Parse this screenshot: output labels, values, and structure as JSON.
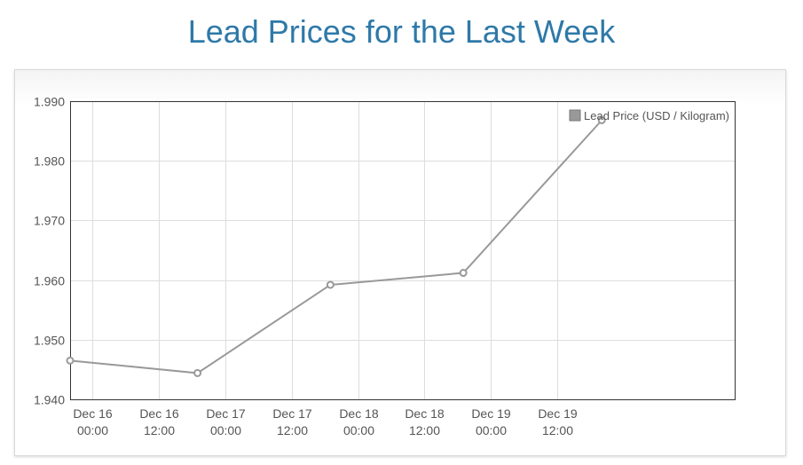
{
  "title": "Lead Prices for the Last Week",
  "chart_data": {
    "type": "line",
    "title": "Lead Prices for the Last Week",
    "xlabel": "",
    "ylabel": "",
    "ylim": [
      1.94,
      1.99
    ],
    "y_ticks": [
      "1.940",
      "1.950",
      "1.960",
      "1.970",
      "1.980",
      "1.990"
    ],
    "x_range_hours": [
      -4,
      116
    ],
    "x_ticks": [
      {
        "line1": "Dec 16",
        "line2": "00:00",
        "h": 0
      },
      {
        "line1": "Dec 16",
        "line2": "12:00",
        "h": 12
      },
      {
        "line1": "Dec 17",
        "line2": "00:00",
        "h": 24
      },
      {
        "line1": "Dec 17",
        "line2": "12:00",
        "h": 36
      },
      {
        "line1": "Dec 18",
        "line2": "00:00",
        "h": 48
      },
      {
        "line1": "Dec 18",
        "line2": "12:00",
        "h": 60
      },
      {
        "line1": "Dec 19",
        "line2": "00:00",
        "h": 72
      },
      {
        "line1": "Dec 19",
        "line2": "12:00",
        "h": 84
      }
    ],
    "grid": true,
    "legend_position": "top-right",
    "series": [
      {
        "name": "Lead Price (USD / Kilogram)",
        "color": "#999999",
        "points": [
          {
            "x": "Dec 15 20:00",
            "h": -4,
            "y": 1.9465
          },
          {
            "x": "Dec 16 19:00",
            "h": 19,
            "y": 1.9444
          },
          {
            "x": "Dec 17 19:00",
            "h": 43,
            "y": 1.9592
          },
          {
            "x": "Dec 18 19:00",
            "h": 67,
            "y": 1.9612
          },
          {
            "x": "Dec 19 20:00",
            "h": 92,
            "y": 1.9868
          }
        ]
      }
    ]
  }
}
